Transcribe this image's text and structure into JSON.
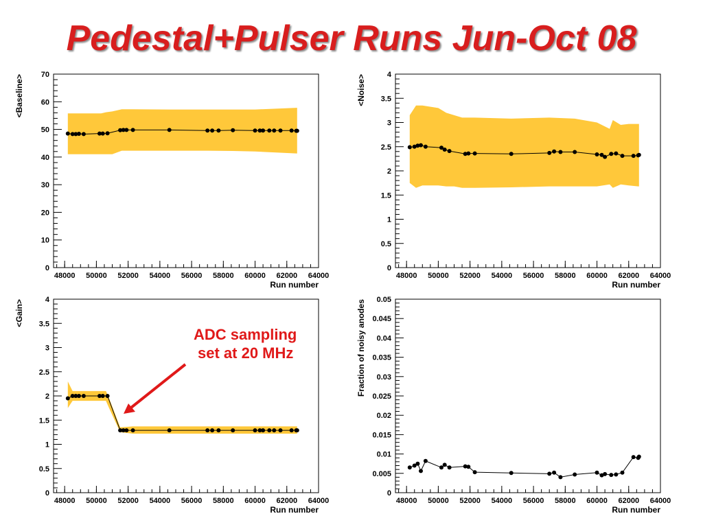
{
  "title": "Pedestal+Pulser Runs Jun-Oct 08",
  "annotation": {
    "line1": "ADC sampling",
    "line2": "set at 20 MHz",
    "color": "#e01919"
  },
  "colors": {
    "band": "#ffc83a",
    "line": "#000000",
    "title": "#d81e1e"
  },
  "chart_data": [
    {
      "type": "line",
      "ylabel": "<Baseline>",
      "xlabel": "Run number",
      "xlim": [
        47300,
        64000
      ],
      "ylim": [
        0,
        70
      ],
      "xticks": [
        48000,
        50000,
        52000,
        54000,
        56000,
        58000,
        60000,
        62000,
        64000
      ],
      "yticks": [
        0,
        10,
        20,
        30,
        40,
        50,
        60,
        70
      ],
      "x": [
        48200,
        48500,
        48700,
        48900,
        49200,
        50200,
        50400,
        50700,
        51500,
        51700,
        51900,
        52300,
        54600,
        57000,
        57300,
        57700,
        58600,
        60000,
        60300,
        60500,
        60900,
        61200,
        61600,
        62300,
        62600,
        62650
      ],
      "y": [
        48.5,
        48.3,
        48.3,
        48.4,
        48.3,
        48.5,
        48.5,
        48.6,
        49.7,
        49.8,
        49.8,
        49.8,
        49.8,
        49.6,
        49.6,
        49.6,
        49.7,
        49.6,
        49.6,
        49.6,
        49.6,
        49.6,
        49.6,
        49.6,
        49.5,
        49.5
      ],
      "band": {
        "x": [
          48200,
          50300,
          50600,
          51000,
          51600,
          52300,
          54600,
          57000,
          58600,
          60000,
          62600,
          62650
        ],
        "upper": [
          55.8,
          55.8,
          56.2,
          56.5,
          57.3,
          57.3,
          57.2,
          57.2,
          57.2,
          57.2,
          57.8,
          57.8
        ],
        "lower": [
          41.0,
          41.0,
          41.0,
          41.0,
          42.3,
          42.3,
          42.3,
          42.3,
          42.2,
          42.0,
          41.3,
          41.3
        ]
      }
    },
    {
      "type": "line",
      "ylabel": "<Noise>",
      "xlabel": "Run number",
      "xlim": [
        47300,
        64000
      ],
      "ylim": [
        0,
        4
      ],
      "xticks": [
        48000,
        50000,
        52000,
        54000,
        56000,
        58000,
        60000,
        62000,
        64000
      ],
      "yticks": [
        0,
        0.5,
        1,
        1.5,
        2,
        2.5,
        3,
        3.5,
        4
      ],
      "x": [
        48200,
        48500,
        48700,
        48900,
        49200,
        50200,
        50400,
        50700,
        51700,
        51900,
        52300,
        54600,
        57000,
        57300,
        57700,
        58600,
        60000,
        60300,
        60500,
        60900,
        61200,
        61600,
        62300,
        62600,
        62650
      ],
      "y": [
        2.49,
        2.5,
        2.52,
        2.53,
        2.5,
        2.48,
        2.44,
        2.41,
        2.35,
        2.36,
        2.36,
        2.35,
        2.37,
        2.4,
        2.39,
        2.39,
        2.34,
        2.33,
        2.29,
        2.35,
        2.36,
        2.31,
        2.31,
        2.32,
        2.33
      ],
      "band": {
        "x": [
          48200,
          48600,
          49000,
          50000,
          50500,
          51000,
          51500,
          52300,
          54600,
          57000,
          58600,
          60000,
          60800,
          61000,
          61500,
          62000,
          62600,
          62650
        ],
        "upper": [
          3.15,
          3.35,
          3.35,
          3.3,
          3.2,
          3.15,
          3.1,
          3.1,
          3.08,
          3.1,
          3.08,
          3.0,
          2.87,
          3.05,
          2.95,
          2.97,
          2.97,
          2.97
        ],
        "lower": [
          1.75,
          1.65,
          1.7,
          1.7,
          1.68,
          1.68,
          1.65,
          1.65,
          1.66,
          1.68,
          1.68,
          1.68,
          1.72,
          1.65,
          1.72,
          1.7,
          1.68,
          1.68
        ]
      }
    },
    {
      "type": "line",
      "ylabel": "<Gain>",
      "xlabel": "Run number",
      "xlim": [
        47300,
        64000
      ],
      "ylim": [
        0,
        4
      ],
      "xticks": [
        48000,
        50000,
        52000,
        54000,
        56000,
        58000,
        60000,
        62000,
        64000
      ],
      "yticks": [
        0,
        0.5,
        1,
        1.5,
        2,
        2.5,
        3,
        3.5,
        4
      ],
      "x": [
        48200,
        48500,
        48700,
        48900,
        49200,
        50200,
        50400,
        50700,
        51500,
        51700,
        51900,
        52300,
        54600,
        57000,
        57300,
        57700,
        58600,
        60000,
        60300,
        60500,
        60900,
        61200,
        61600,
        62300,
        62600,
        62650
      ],
      "y": [
        1.95,
        2.0,
        2.0,
        2.0,
        2.0,
        2.0,
        2.0,
        2.0,
        1.29,
        1.29,
        1.29,
        1.29,
        1.29,
        1.29,
        1.29,
        1.29,
        1.29,
        1.29,
        1.29,
        1.29,
        1.29,
        1.29,
        1.29,
        1.29,
        1.29,
        1.29
      ],
      "band": {
        "x": [
          48200,
          48500,
          50600,
          50800,
          51500,
          52300,
          62650
        ],
        "upper": [
          2.3,
          2.1,
          2.1,
          1.95,
          1.35,
          1.37,
          1.37
        ],
        "lower": [
          1.75,
          1.9,
          1.9,
          1.75,
          1.25,
          1.22,
          1.22
        ]
      }
    },
    {
      "type": "line",
      "ylabel": "Fraction of noisy anodes",
      "xlabel": "Run number",
      "xlim": [
        47300,
        64000
      ],
      "ylim": [
        0,
        0.05
      ],
      "xticks": [
        48000,
        50000,
        52000,
        54000,
        56000,
        58000,
        60000,
        62000,
        64000
      ],
      "yticks": [
        0,
        0.005,
        0.01,
        0.015,
        0.02,
        0.025,
        0.03,
        0.035,
        0.04,
        0.045,
        0.05
      ],
      "x": [
        48200,
        48500,
        48700,
        48900,
        49200,
        50200,
        50400,
        50700,
        51700,
        51900,
        52300,
        54600,
        57000,
        57300,
        57700,
        58600,
        60000,
        60300,
        60500,
        60900,
        61200,
        61600,
        62300,
        62600,
        62650
      ],
      "y": [
        0.0065,
        0.007,
        0.0075,
        0.0056,
        0.0082,
        0.0065,
        0.0072,
        0.0065,
        0.0068,
        0.0067,
        0.0053,
        0.0051,
        0.0049,
        0.0052,
        0.004,
        0.0047,
        0.0052,
        0.0045,
        0.0048,
        0.0046,
        0.0047,
        0.0052,
        0.0092,
        0.009,
        0.0093
      ]
    }
  ]
}
